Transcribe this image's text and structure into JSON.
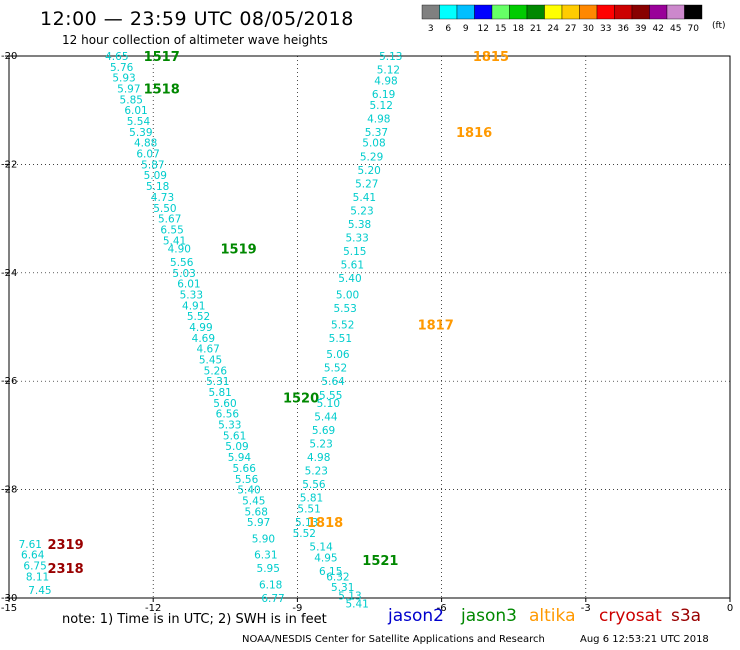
{
  "header": {
    "title": "12:00 — 23:59 UTC 08/05/2018",
    "subtitle": "12 hour collection of altimeter wave heights"
  },
  "color_scale": {
    "unit": "(ft)",
    "bins": [
      {
        "label": "3",
        "color": "#808080"
      },
      {
        "label": "6",
        "color": "#00ffff"
      },
      {
        "label": "9",
        "color": "#00bfff"
      },
      {
        "label": "12",
        "color": "#0000ff"
      },
      {
        "label": "15",
        "color": "#66ff66"
      },
      {
        "label": "18",
        "color": "#00cc00"
      },
      {
        "label": "21",
        "color": "#008800"
      },
      {
        "label": "24",
        "color": "#ffff00"
      },
      {
        "label": "27",
        "color": "#ffcc00"
      },
      {
        "label": "30",
        "color": "#ff8800"
      },
      {
        "label": "33",
        "color": "#ff0000"
      },
      {
        "label": "36",
        "color": "#cc0000"
      },
      {
        "label": "39",
        "color": "#880000"
      },
      {
        "label": "42",
        "color": "#990099"
      },
      {
        "label": "45",
        "color": "#cc88cc"
      },
      {
        "label": "70",
        "color": "#000000"
      }
    ]
  },
  "footer": {
    "note": "note: 1) Time is in UTC; 2) SWH is in feet",
    "credit": "NOAA/NESDIS Center for Satellite Applications and Research",
    "timestamp": "Aug  6 12:53:21 UTC 2018",
    "satellites": [
      {
        "name": "jason2",
        "color": "#0000cc"
      },
      {
        "name": "jason3",
        "color": "#008800"
      },
      {
        "name": "altika",
        "color": "#ff9900"
      },
      {
        "name": "cryosat",
        "color": "#cc0000"
      },
      {
        "name": "s3a",
        "color": "#990000"
      }
    ]
  },
  "chart_data": {
    "type": "scatter",
    "xlim": [
      -15,
      0
    ],
    "ylim": [
      -30,
      -20
    ],
    "xticks": [
      -15,
      -12,
      -9,
      -6,
      -3,
      0
    ],
    "yticks": [
      -20,
      -22,
      -24,
      -26,
      -28,
      -30
    ],
    "grid": true,
    "value_color": "#00cccc",
    "tracks": [
      {
        "satellite": "jason3",
        "color": "#008800",
        "labels": [
          {
            "text": "1517",
            "x": -12.2,
            "y": -20.0
          },
          {
            "text": "1518",
            "x": -12.2,
            "y": -20.6
          },
          {
            "text": "1519",
            "x": -10.6,
            "y": -23.55
          },
          {
            "text": "1520",
            "x": -9.3,
            "y": -26.3
          }
        ],
        "points": [
          {
            "x": -13.0,
            "y": -20.0,
            "v": "4.65"
          },
          {
            "x": -12.9,
            "y": -20.2,
            "v": "5.76"
          },
          {
            "x": -12.85,
            "y": -20.4,
            "v": "5.93"
          },
          {
            "x": -12.75,
            "y": -20.6,
            "v": "5.97"
          },
          {
            "x": -12.7,
            "y": -20.8,
            "v": "5.85"
          },
          {
            "x": -12.6,
            "y": -21.0,
            "v": "6.01"
          },
          {
            "x": -12.55,
            "y": -21.2,
            "v": "5.54"
          },
          {
            "x": -12.5,
            "y": -21.4,
            "v": "5.39"
          },
          {
            "x": -12.4,
            "y": -21.6,
            "v": "4.88"
          },
          {
            "x": -12.35,
            "y": -21.8,
            "v": "6.07"
          },
          {
            "x": -12.25,
            "y": -22.0,
            "v": "5.87"
          },
          {
            "x": -12.2,
            "y": -22.2,
            "v": "5.09"
          },
          {
            "x": -12.15,
            "y": -22.4,
            "v": "5.18"
          },
          {
            "x": -12.05,
            "y": -22.6,
            "v": "4.73"
          },
          {
            "x": -12.0,
            "y": -22.8,
            "v": "5.50"
          },
          {
            "x": -11.9,
            "y": -23.0,
            "v": "5.67"
          },
          {
            "x": -11.85,
            "y": -23.2,
            "v": "6.55"
          },
          {
            "x": -11.8,
            "y": -23.4,
            "v": "5.41"
          },
          {
            "x": -11.7,
            "y": -23.55,
            "v": "4.90"
          },
          {
            "x": -11.65,
            "y": -23.8,
            "v": "5.56"
          },
          {
            "x": -11.6,
            "y": -24.0,
            "v": "5.03"
          },
          {
            "x": -11.5,
            "y": -24.2,
            "v": "6.01"
          },
          {
            "x": -11.45,
            "y": -24.4,
            "v": "5.33"
          },
          {
            "x": -11.4,
            "y": -24.6,
            "v": "4.91"
          },
          {
            "x": -11.3,
            "y": -24.8,
            "v": "5.52"
          },
          {
            "x": -11.25,
            "y": -25.0,
            "v": "4.99"
          },
          {
            "x": -11.2,
            "y": -25.2,
            "v": "4.69"
          },
          {
            "x": -11.1,
            "y": -25.4,
            "v": "4.67"
          },
          {
            "x": -11.05,
            "y": -25.6,
            "v": "5.45"
          },
          {
            "x": -10.95,
            "y": -25.8,
            "v": "5.26"
          },
          {
            "x": -10.9,
            "y": -26.0,
            "v": "5.31"
          },
          {
            "x": -10.85,
            "y": -26.2,
            "v": "5.81"
          },
          {
            "x": -10.75,
            "y": -26.4,
            "v": "5.60"
          },
          {
            "x": -10.7,
            "y": -26.6,
            "v": "6.56"
          },
          {
            "x": -10.65,
            "y": -26.8,
            "v": "5.33"
          },
          {
            "x": -10.55,
            "y": -27.0,
            "v": "5.61"
          },
          {
            "x": -10.5,
            "y": -27.2,
            "v": "5.09"
          },
          {
            "x": -10.45,
            "y": -27.4,
            "v": "5.94"
          },
          {
            "x": -10.35,
            "y": -27.6,
            "v": "5.66"
          },
          {
            "x": -10.3,
            "y": -27.8,
            "v": "5.56"
          },
          {
            "x": -10.25,
            "y": -28.0,
            "v": "5.40"
          },
          {
            "x": -10.15,
            "y": -28.2,
            "v": "5.45"
          },
          {
            "x": -10.1,
            "y": -28.4,
            "v": "5.68"
          },
          {
            "x": -10.05,
            "y": -28.6,
            "v": "5.97"
          },
          {
            "x": -9.95,
            "y": -28.9,
            "v": "5.90"
          },
          {
            "x": -9.9,
            "y": -29.2,
            "v": "6.31"
          },
          {
            "x": -9.85,
            "y": -29.45,
            "v": "5.95"
          },
          {
            "x": -9.8,
            "y": -29.75,
            "v": "6.18"
          },
          {
            "x": -9.75,
            "y": -30.0,
            "v": "6.77"
          }
        ]
      },
      {
        "satellite": "altika",
        "color": "#ff9900",
        "labels": [
          {
            "text": "1815",
            "x": -5.35,
            "y": -20.0
          },
          {
            "text": "1816",
            "x": -5.7,
            "y": -21.4
          },
          {
            "text": "1817",
            "x": -6.5,
            "y": -24.95
          },
          {
            "text": "1818",
            "x": -8.8,
            "y": -28.6
          }
        ],
        "points": [
          {
            "x": -7.3,
            "y": -20.0,
            "v": "5.13"
          },
          {
            "x": -7.35,
            "y": -20.25,
            "v": "5.12"
          },
          {
            "x": -7.4,
            "y": -20.45,
            "v": "4.98"
          },
          {
            "x": -7.45,
            "y": -20.7,
            "v": "6.19"
          },
          {
            "x": -7.5,
            "y": -20.9,
            "v": "5.12"
          },
          {
            "x": -7.55,
            "y": -21.15,
            "v": "4.98"
          },
          {
            "x": -7.6,
            "y": -21.4,
            "v": "5.37"
          },
          {
            "x": -7.65,
            "y": -21.6,
            "v": "5.08"
          },
          {
            "x": -7.7,
            "y": -21.85,
            "v": "5.29"
          },
          {
            "x": -7.75,
            "y": -22.1,
            "v": "5.20"
          },
          {
            "x": -7.8,
            "y": -22.35,
            "v": "5.27"
          },
          {
            "x": -7.85,
            "y": -22.6,
            "v": "5.41"
          },
          {
            "x": -7.9,
            "y": -22.85,
            "v": "5.23"
          },
          {
            "x": -7.95,
            "y": -23.1,
            "v": "5.38"
          },
          {
            "x": -8.0,
            "y": -23.35,
            "v": "5.33"
          },
          {
            "x": -8.05,
            "y": -23.6,
            "v": "5.15"
          },
          {
            "x": -8.1,
            "y": -23.85,
            "v": "5.61"
          },
          {
            "x": -8.15,
            "y": -24.1,
            "v": "5.40"
          },
          {
            "x": -8.2,
            "y": -24.4,
            "v": "5.00"
          },
          {
            "x": -8.25,
            "y": -24.65,
            "v": "5.53"
          },
          {
            "x": -8.3,
            "y": -24.95,
            "v": "5.52"
          },
          {
            "x": -8.35,
            "y": -25.2,
            "v": "5.51"
          },
          {
            "x": -8.4,
            "y": -25.5,
            "v": "5.06"
          },
          {
            "x": -8.45,
            "y": -25.75,
            "v": "5.52"
          },
          {
            "x": -8.5,
            "y": -26.0,
            "v": "5.64"
          },
          {
            "x": -8.55,
            "y": -26.25,
            "v": "5.55"
          },
          {
            "x": -8.6,
            "y": -26.4,
            "v": "5.10"
          },
          {
            "x": -8.65,
            "y": -26.65,
            "v": "5.44"
          },
          {
            "x": -8.7,
            "y": -26.9,
            "v": "5.69"
          },
          {
            "x": -8.75,
            "y": -27.15,
            "v": "5.23"
          },
          {
            "x": -8.8,
            "y": -27.4,
            "v": "4.98"
          },
          {
            "x": -8.85,
            "y": -27.65,
            "v": "5.23"
          },
          {
            "x": -8.9,
            "y": -27.9,
            "v": "5.56"
          },
          {
            "x": -8.95,
            "y": -28.15,
            "v": "5.81"
          },
          {
            "x": -9.0,
            "y": -28.35,
            "v": "5.51"
          },
          {
            "x": -9.05,
            "y": -28.6,
            "v": "5.13"
          },
          {
            "x": -9.1,
            "y": -28.8,
            "v": "5.52"
          },
          {
            "x": -8.75,
            "y": -29.05,
            "v": "5.14"
          },
          {
            "x": -8.65,
            "y": -29.25,
            "v": "4.95"
          },
          {
            "x": -8.55,
            "y": -29.5,
            "v": "6.15"
          },
          {
            "x": -8.4,
            "y": -29.6,
            "v": "6.32"
          },
          {
            "x": -8.3,
            "y": -29.8,
            "v": "5.31"
          },
          {
            "x": -8.15,
            "y": -29.95,
            "v": "5.13"
          },
          {
            "x": -8.0,
            "y": -30.1,
            "v": "5.41"
          }
        ]
      },
      {
        "satellite": "jason3",
        "color": "#008800",
        "labels": [
          {
            "text": "1521",
            "x": -7.65,
            "y": -29.3
          }
        ],
        "points": []
      },
      {
        "satellite": "s3a",
        "color": "#990000",
        "labels": [
          {
            "text": "2319",
            "x": -14.2,
            "y": -29.0
          },
          {
            "text": "2318",
            "x": -14.2,
            "y": -29.45
          }
        ],
        "points": [
          {
            "x": -14.8,
            "y": -29.0,
            "v": "7.61"
          },
          {
            "x": -14.75,
            "y": -29.2,
            "v": "6.64"
          },
          {
            "x": -14.7,
            "y": -29.4,
            "v": "6.75"
          },
          {
            "x": -14.65,
            "y": -29.6,
            "v": "8.11"
          },
          {
            "x": -14.6,
            "y": -29.85,
            "v": "7.45"
          }
        ]
      }
    ]
  }
}
